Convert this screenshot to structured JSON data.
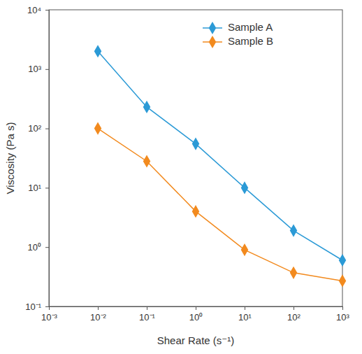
{
  "chart_data": {
    "type": "line",
    "x_label": "Shear Rate (s⁻¹)",
    "y_label": "Viscosity (Pa s)",
    "x": [
      0.01,
      0.1,
      1,
      10,
      100,
      1000
    ],
    "series": [
      {
        "name": "Sample A",
        "color": "#2b9ad6",
        "marker": "diamond",
        "line_style": "solid",
        "values": [
          2000,
          230,
          55,
          10,
          1.9,
          0.6
        ]
      },
      {
        "name": "Sample B",
        "color": "#f28a1e",
        "marker": "diamond",
        "line_style": "solid",
        "values": [
          100,
          28,
          4,
          0.9,
          0.37,
          0.27
        ]
      }
    ],
    "log": true,
    "xlim": [
      0.001,
      1000
    ],
    "ylim": [
      0.1,
      10000
    ],
    "xticks": [
      {
        "value": 0.001,
        "label": "10⁻³"
      },
      {
        "value": 0.01,
        "label": "10⁻²"
      },
      {
        "value": 0.1,
        "label": "10⁻¹"
      },
      {
        "value": 1,
        "label": "10⁰"
      },
      {
        "value": 10,
        "label": "10¹"
      },
      {
        "value": 100,
        "label": "10²"
      },
      {
        "value": 1000,
        "label": "10³"
      }
    ],
    "yticks": [
      {
        "value": 0.1,
        "label": "10⁻¹"
      },
      {
        "value": 1,
        "label": "10⁰"
      },
      {
        "value": 10,
        "label": "10¹"
      },
      {
        "value": 100,
        "label": "10²"
      },
      {
        "value": 1000,
        "label": "10³"
      },
      {
        "value": 10000,
        "label": "10⁴"
      }
    ],
    "grid": false,
    "legend": "top-right"
  }
}
